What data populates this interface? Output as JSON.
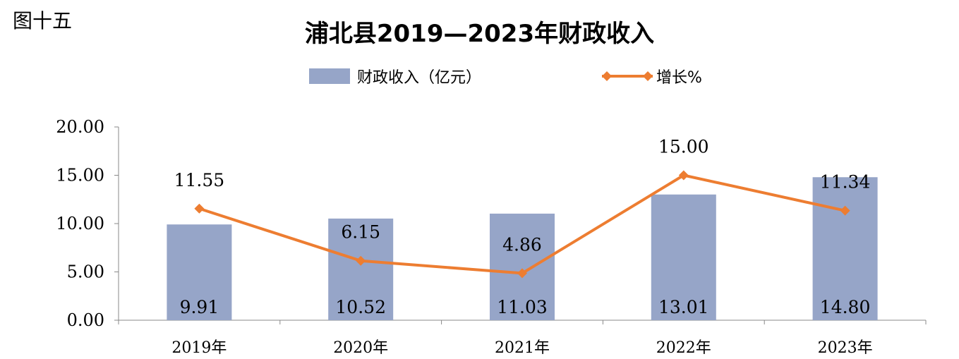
{
  "figure_label": "图十五",
  "chart_data": {
    "type": "bar",
    "title": "浦北县2019—2023年财政收入",
    "categories": [
      "2019年",
      "2020年",
      "2021年",
      "2022年",
      "2023年"
    ],
    "ylim": [
      0,
      20
    ],
    "yticks": [
      "0.00",
      "5.00",
      "10.00",
      "15.00",
      "20.00"
    ],
    "grid": false,
    "legend_position": "top",
    "series": [
      {
        "name": "财政收入（亿元）",
        "type": "bar",
        "color": "#96A5C8",
        "values": [
          9.91,
          10.52,
          11.03,
          13.01,
          14.8
        ],
        "value_labels": [
          "9.91",
          "10.52",
          "11.03",
          "13.01",
          "14.80"
        ]
      },
      {
        "name": "增长%",
        "type": "line",
        "color": "#ED7D31",
        "values": [
          11.55,
          6.15,
          4.86,
          15.0,
          11.34
        ],
        "value_labels": [
          "11.55",
          "6.15",
          "4.86",
          "15.00",
          "11.34"
        ]
      }
    ]
  }
}
